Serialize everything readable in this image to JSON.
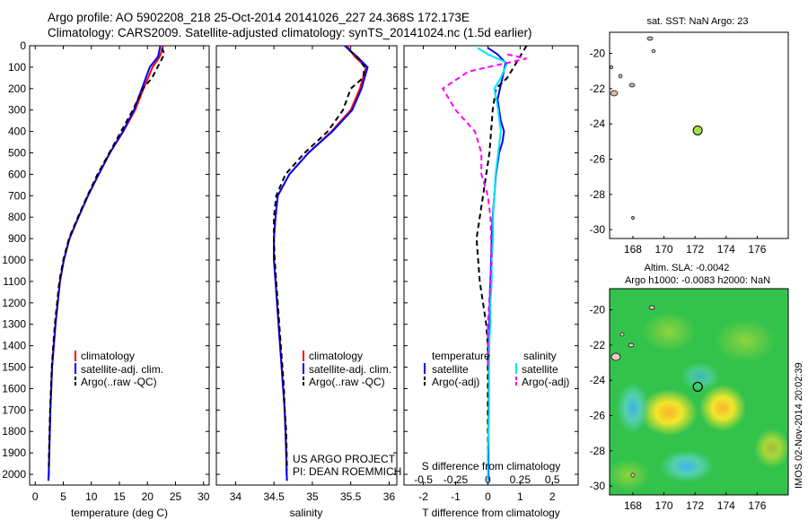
{
  "title": {
    "line1": "Argo profile: AO 5902208_218 25-Oct-2014 20141026_227 24.368S 172.173E",
    "line2": "Climatology: CARS2009. Satellite-adjusted climatology: synTS_20141024.nc (1.5d earlier)"
  },
  "side_note": "IMOS 02-Nov-2014 20:02:39",
  "project_note": {
    "line1": "US ARGO PROJECT",
    "line2": "PI: DEAN ROEMMICH"
  },
  "diff_labels": {
    "s": "S difference from climatology",
    "t": "T difference from climatology"
  },
  "colors": {
    "climatology": "#ff0000",
    "satellite": "#0000ff",
    "argo": "#000000",
    "sal_sat": "#00e5ee",
    "sal_argo": "#ff00ff"
  },
  "chart_data": [
    {
      "type": "line",
      "xlabel": "temperature (deg C)",
      "ylabel": "",
      "xlim": [
        -1,
        31
      ],
      "ylim": [
        0,
        2050
      ],
      "xticks": [
        0,
        5,
        10,
        15,
        20,
        25,
        30
      ],
      "yticks": [
        0,
        100,
        200,
        300,
        400,
        500,
        600,
        700,
        800,
        900,
        1000,
        1100,
        1200,
        1300,
        1400,
        1500,
        1600,
        1700,
        1800,
        1900,
        2000
      ],
      "legend_position": "lower-center",
      "series": [
        {
          "name": "climatology",
          "style": "solid",
          "color": "#ff0000",
          "x": [
            22.8,
            22.2,
            20.9,
            19.3,
            17.8,
            15.7,
            13.3,
            11.3,
            9.4,
            7.7,
            6.1,
            5.1,
            4.4,
            4.0,
            3.6,
            3.3,
            3.0,
            2.85,
            2.7,
            2.6,
            2.5,
            2.4,
            2.35
          ],
          "y": [
            0,
            50,
            100,
            200,
            300,
            400,
            500,
            600,
            700,
            800,
            900,
            1000,
            1100,
            1200,
            1300,
            1400,
            1500,
            1600,
            1700,
            1800,
            1900,
            2000,
            2030
          ]
        },
        {
          "name": "satellite-adj. clim.",
          "style": "solid",
          "color": "#0000ff",
          "x": [
            22.3,
            21.9,
            20.4,
            19.0,
            17.6,
            15.6,
            13.3,
            11.3,
            9.4,
            7.7,
            6.1,
            5.1,
            4.4,
            4.0,
            3.6,
            3.3,
            3.0,
            2.85,
            2.7,
            2.6,
            2.5,
            2.4,
            2.35
          ],
          "y": [
            0,
            50,
            100,
            200,
            300,
            400,
            500,
            600,
            700,
            800,
            900,
            1000,
            1100,
            1200,
            1300,
            1400,
            1500,
            1600,
            1700,
            1800,
            1900,
            2000,
            2030
          ]
        },
        {
          "name": "Argo(..raw -QC)",
          "style": "dashed",
          "color": "#000000",
          "x": [
            22.6,
            23.0,
            22.2,
            20.8,
            19.2,
            17.4,
            15.3,
            13.2,
            11.1,
            9.3,
            7.6,
            6.0,
            5.0,
            4.3,
            3.9,
            3.5,
            3.2,
            2.95,
            2.8,
            2.65,
            2.55,
            2.45,
            2.4
          ],
          "y": [
            10,
            40,
            80,
            150,
            200,
            300,
            400,
            500,
            600,
            700,
            800,
            900,
            1000,
            1100,
            1200,
            1300,
            1400,
            1500,
            1600,
            1700,
            1800,
            1900,
            1980
          ]
        }
      ]
    },
    {
      "type": "line",
      "xlabel": "salinity",
      "ylabel": "",
      "xlim": [
        33.75,
        36.1
      ],
      "ylim": [
        0,
        2050
      ],
      "xticks": [
        34,
        34.5,
        35,
        35.5,
        36
      ],
      "legend_position": "lower-center",
      "series": [
        {
          "name": "climatology",
          "style": "solid",
          "color": "#ff0000",
          "x": [
            35.45,
            35.55,
            35.7,
            35.62,
            35.5,
            35.25,
            34.95,
            34.7,
            34.55,
            34.52,
            34.5,
            34.5,
            34.52,
            34.54,
            34.56,
            34.58,
            34.6,
            34.62,
            34.64,
            34.65,
            34.66,
            34.665,
            34.67
          ],
          "y": [
            0,
            50,
            100,
            200,
            300,
            400,
            500,
            600,
            700,
            800,
            900,
            1000,
            1100,
            1200,
            1300,
            1400,
            1500,
            1600,
            1700,
            1800,
            1900,
            2000,
            2030
          ]
        },
        {
          "name": "satellite-adj. clim.",
          "style": "solid",
          "color": "#0000ff",
          "x": [
            35.42,
            35.58,
            35.72,
            35.64,
            35.52,
            35.26,
            34.95,
            34.7,
            34.55,
            34.52,
            34.5,
            34.5,
            34.52,
            34.54,
            34.56,
            34.58,
            34.6,
            34.62,
            34.64,
            34.65,
            34.66,
            34.665,
            34.67
          ],
          "y": [
            0,
            50,
            100,
            200,
            300,
            400,
            500,
            600,
            700,
            800,
            900,
            1000,
            1100,
            1200,
            1300,
            1400,
            1500,
            1600,
            1700,
            1800,
            1900,
            2000,
            2030
          ]
        },
        {
          "name": "Argo(..raw -QC)",
          "style": "dashed",
          "color": "#000000",
          "x": [
            35.48,
            35.6,
            35.68,
            35.66,
            35.5,
            35.4,
            35.2,
            34.9,
            34.65,
            34.53,
            34.5,
            34.5,
            34.51,
            34.53,
            34.55,
            34.57,
            34.59,
            34.61,
            34.63,
            34.64,
            34.66,
            34.67
          ],
          "y": [
            20,
            60,
            100,
            150,
            200,
            300,
            400,
            500,
            600,
            700,
            800,
            900,
            1000,
            1100,
            1200,
            1300,
            1400,
            1500,
            1600,
            1700,
            1800,
            1980
          ]
        }
      ]
    },
    {
      "type": "line",
      "xlabel": "T difference from climatology",
      "top_axis_label": "S difference from climatology",
      "xlim": [
        -2.6,
        2.8
      ],
      "ylim": [
        0,
        2050
      ],
      "xticks": [
        -2,
        -1,
        0,
        1,
        2
      ],
      "top_ticks": [
        -0.5,
        -0.25,
        0,
        0.25,
        0.5
      ],
      "top_ticks_display": [
        "-0.5",
        "-0.25",
        "0",
        "0.25",
        "0.5"
      ],
      "legend": {
        "temperature_header": "temperature",
        "salinity_header": "salinity",
        "entries": [
          "satellite",
          "Argo(-adj)",
          "satellite",
          "Argo(-adj)"
        ]
      },
      "series": [
        {
          "name": "temperature satellite",
          "style": "solid",
          "color": "#0000ff",
          "x": [
            0.0,
            0.3,
            0.55,
            0.45,
            0.3,
            0.35,
            0.4,
            0.5,
            0.45,
            0.35,
            0.25,
            0.2,
            0.15,
            0.12,
            0.1,
            0.08,
            0.06,
            0.05,
            0.04,
            0.03,
            0.03,
            0.02,
            0.02,
            0.02
          ],
          "y": [
            10,
            40,
            80,
            150,
            250,
            300,
            350,
            400,
            450,
            500,
            600,
            700,
            800,
            900,
            1000,
            1100,
            1200,
            1300,
            1400,
            1500,
            1600,
            1800,
            1900,
            2030
          ]
        },
        {
          "name": "temperature Argo(-adj)",
          "style": "dashed",
          "color": "#000000",
          "x": [
            1.2,
            1.0,
            0.6,
            0.25,
            0.15,
            0.1,
            0.05,
            -0.05,
            -0.1,
            -0.15,
            -0.2,
            -0.25,
            -0.35,
            -0.3,
            -0.25,
            -0.15,
            -0.05,
            0.0,
            0.0,
            0.0,
            0.0,
            0.0
          ],
          "y": [
            0,
            50,
            150,
            200,
            300,
            400,
            500,
            600,
            650,
            700,
            750,
            800,
            900,
            1000,
            1100,
            1200,
            1300,
            1400,
            1500,
            1600,
            1800,
            1980
          ]
        },
        {
          "name": "salinity satellite",
          "style": "solid",
          "color": "#00e5ee",
          "x": [
            -0.08,
            0.0,
            0.15,
            0.1,
            0.05,
            0.08,
            0.1,
            0.08,
            0.06,
            0.05,
            0.04,
            0.04,
            0.03,
            0.03,
            0.02,
            0.02,
            0.01,
            0.01,
            0.01,
            0.01,
            0.0,
            0.0
          ],
          "y": [
            10,
            40,
            80,
            150,
            200,
            300,
            400,
            500,
            600,
            700,
            800,
            900,
            1000,
            1100,
            1200,
            1300,
            1400,
            1500,
            1600,
            1700,
            1900,
            2030
          ]
        },
        {
          "name": "salinity Argo(-adj)",
          "style": "dashed",
          "color": "#ff00ff",
          "x": [
            0.15,
            0.3,
            -0.15,
            -0.35,
            -0.25,
            -0.1,
            -0.05,
            -0.05,
            0.0,
            0.02,
            0.03,
            0.02,
            0.01,
            0.0,
            0.0,
            0.0
          ],
          "y": [
            40,
            60,
            120,
            200,
            300,
            400,
            500,
            600,
            700,
            800,
            1000,
            1100,
            1200,
            1300,
            1400,
            1500
          ]
        }
      ]
    },
    {
      "type": "scatter",
      "title": "sat. SST: NaN Argo: 23",
      "xlim": [
        166.5,
        178
      ],
      "ylim": [
        -30.5,
        -18.8
      ],
      "xticks": [
        168,
        170,
        172,
        174,
        176
      ],
      "yticks": [
        -20,
        -22,
        -24,
        -26,
        -28,
        -30
      ],
      "marker": {
        "lon": 172.173,
        "lat": -24.368
      },
      "grid": false
    },
    {
      "type": "heatmap",
      "title_line1": "Altim. SLA: -0.0042",
      "title_line2": "Argo h1000: -0.0083 h2000: NaN",
      "xlim": [
        166.5,
        178
      ],
      "ylim": [
        -30.5,
        -18.8
      ],
      "xticks": [
        168,
        170,
        172,
        174,
        176
      ],
      "yticks": [
        -20,
        -22,
        -24,
        -26,
        -28,
        -30
      ],
      "marker": {
        "lon": 172.173,
        "lat": -24.368
      }
    }
  ]
}
